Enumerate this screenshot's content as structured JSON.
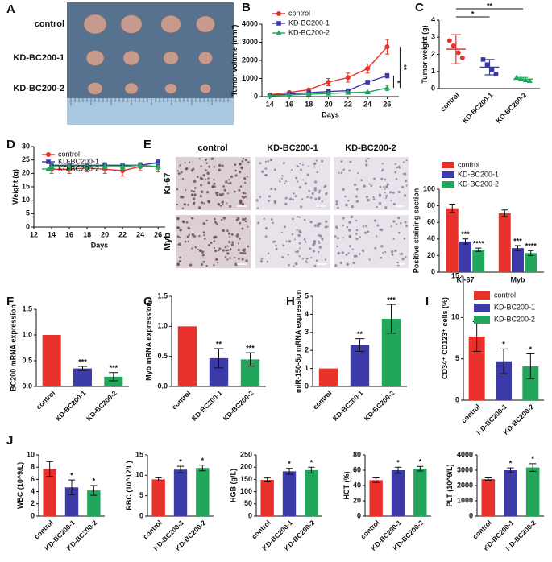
{
  "photo": {
    "panel": "A",
    "labels": [
      "control",
      "KD-BC200-1",
      "KD-BC200-2"
    ]
  },
  "ihc": {
    "panel": "E",
    "columns": [
      "control",
      "KD-BC200-1",
      "KD-BC200-2"
    ],
    "rows": [
      "Ki-67",
      "Myb"
    ]
  },
  "chart_data": [
    {
      "type": "line",
      "panel": "B",
      "xlabel": "Days",
      "ylabel": "Tumor volume (mm³)",
      "x": [
        14,
        16,
        18,
        20,
        22,
        24,
        26
      ],
      "xlim": [
        13.2,
        27.2
      ],
      "xticks": [
        14,
        16,
        18,
        20,
        22,
        24,
        26
      ],
      "ylim": [
        0,
        4000
      ],
      "yticks": [
        0,
        1000,
        2000,
        3000,
        4000
      ],
      "legend": "upper left",
      "significance": [
        "*",
        "**"
      ],
      "series": [
        {
          "name": "control",
          "color": "#e8312b",
          "marker": "circle",
          "values": [
            100,
            230,
            380,
            800,
            1050,
            1550,
            2750
          ],
          "errors": [
            20,
            40,
            60,
            200,
            250,
            250,
            400
          ]
        },
        {
          "name": "KD-BC200-1",
          "color": "#3c3aa8",
          "marker": "square",
          "values": [
            70,
            140,
            220,
            280,
            330,
            800,
            1150
          ],
          "errors": [
            10,
            20,
            30,
            40,
            50,
            100,
            120
          ]
        },
        {
          "name": "KD-BC200-2",
          "color": "#21a65b",
          "marker": "triangle",
          "values": [
            50,
            90,
            130,
            170,
            220,
            250,
            480
          ],
          "errors": [
            10,
            15,
            20,
            25,
            30,
            40,
            150
          ]
        }
      ]
    },
    {
      "type": "dot",
      "panel": "C",
      "ylabel": "Tumor weight (g)",
      "categories": [
        "control",
        "KD-BC200-1",
        "KD-BC200-2"
      ],
      "colors": [
        "#e8312b",
        "#3c3aa8",
        "#21a65b"
      ],
      "markers": [
        "circle",
        "square",
        "triangle"
      ],
      "points": [
        [
          2.8,
          2.5,
          2.1,
          1.8
        ],
        [
          1.7,
          1.4,
          1.1,
          0.85
        ],
        [
          0.65,
          0.55,
          0.5,
          0.45
        ]
      ],
      "means": [
        2.3,
        1.25,
        0.55
      ],
      "sds": [
        0.85,
        0.45,
        0.1
      ],
      "ylim": [
        0,
        4
      ],
      "yticks": [
        0,
        1,
        2,
        3,
        4
      ],
      "significance": [
        "*",
        "**"
      ]
    },
    {
      "type": "line",
      "panel": "D",
      "xlabel": "Days",
      "ylabel": "Weight (g)",
      "x": [
        14,
        16,
        18,
        20,
        22,
        24,
        26
      ],
      "xlim": [
        12,
        26.8
      ],
      "xticks": [
        12,
        14,
        16,
        18,
        20,
        22,
        24,
        26
      ],
      "ylim": [
        0,
        30
      ],
      "yticks": [
        0,
        5,
        10,
        15,
        20,
        25,
        30
      ],
      "legend": "upper left",
      "series": [
        {
          "name": "control",
          "color": "#e8312b",
          "marker": "circle",
          "values": [
            21.5,
            21.5,
            22,
            21.5,
            21,
            22.5,
            22.5
          ],
          "errors": [
            1.5,
            1.5,
            1.5,
            1.5,
            2,
            1.5,
            2
          ]
        },
        {
          "name": "KD-BC200-1",
          "color": "#3c3aa8",
          "marker": "square",
          "values": [
            23,
            23,
            23,
            23,
            23,
            23,
            24
          ],
          "errors": [
            0.5,
            0.5,
            0.5,
            0.5,
            0.5,
            0.8,
            1
          ]
        },
        {
          "name": "KD-BC200-2",
          "color": "#21a65b",
          "marker": "triangle",
          "values": [
            22.5,
            22.5,
            22.5,
            22.5,
            22.5,
            23,
            22.5
          ],
          "errors": [
            1,
            1,
            1,
            1.5,
            1,
            1,
            1
          ]
        }
      ]
    },
    {
      "type": "bar",
      "ylabel": "Positive staining section",
      "categories": [
        "Ki-67",
        "Myb"
      ],
      "ylim": [
        0,
        100
      ],
      "yticks": [
        0,
        20,
        40,
        60,
        80,
        100
      ],
      "legend": "upper left",
      "series": [
        {
          "name": "control",
          "color": "#e8312b",
          "values": [
            77,
            71
          ],
          "errors": [
            5,
            4
          ]
        },
        {
          "name": "KD-BC200-1",
          "color": "#3c3aa8",
          "values": [
            37,
            29
          ],
          "errors": [
            3,
            3
          ],
          "significance": [
            "***",
            "***"
          ]
        },
        {
          "name": "KD-BC200-2",
          "color": "#21a65b",
          "values": [
            27,
            23
          ],
          "errors": [
            2,
            3
          ],
          "significance": [
            "****",
            "****"
          ]
        }
      ]
    },
    {
      "type": "bar",
      "panel": "F",
      "ylabel": "BC200 mRNA expression",
      "categories": [
        "control",
        "KD-BC200-1",
        "KD-BC200-2"
      ],
      "colors": [
        "#e8312b",
        "#3c3aa8",
        "#21a65b"
      ],
      "values": [
        1.0,
        0.35,
        0.19
      ],
      "errors": [
        null,
        0.04,
        0.08
      ],
      "significance": [
        null,
        "***",
        "***"
      ],
      "ylim": [
        0,
        1.5
      ],
      "yticks": [
        {
          "value": 0,
          "label": "0.0"
        },
        0.5,
        {
          "value": 1,
          "label": "1.0"
        },
        1.5
      ]
    },
    {
      "type": "bar",
      "panel": "G",
      "ylabel": "Myb mRNA expression",
      "categories": [
        "control",
        "KD-BC200-1",
        "KD-BC200-2"
      ],
      "colors": [
        "#e8312b",
        "#3c3aa8",
        "#21a65b"
      ],
      "values": [
        1.0,
        0.47,
        0.45
      ],
      "errors": [
        null,
        0.16,
        0.11
      ],
      "significance": [
        null,
        "**",
        "***"
      ],
      "ylim": [
        0,
        1.5
      ],
      "yticks": [
        {
          "value": 0,
          "label": "0.0"
        },
        0.5,
        {
          "value": 1,
          "label": "1.0"
        },
        1.5
      ]
    },
    {
      "type": "bar",
      "panel": "H",
      "ylabel": "miR-150-5p mRNA expression",
      "categories": [
        "control",
        "KD-BC200-1",
        "KD-BC200-2"
      ],
      "colors": [
        "#e8312b",
        "#3c3aa8",
        "#21a65b"
      ],
      "values": [
        1.0,
        2.3,
        3.75
      ],
      "errors": [
        null,
        0.35,
        0.8
      ],
      "significance": [
        null,
        "**",
        "***"
      ],
      "ylim": [
        0,
        5
      ],
      "yticks": [
        0,
        1,
        2,
        3,
        4,
        5
      ]
    },
    {
      "type": "bar",
      "panel": "I",
      "ylabel": "CD34⁺ CD123⁺ cells (%)",
      "categories": [
        "control",
        "KD-BC200-1",
        "KD-BC200-2"
      ],
      "colors": [
        "#e8312b",
        "#3c3aa8",
        "#21a65b"
      ],
      "values": [
        7.7,
        4.7,
        4.1
      ],
      "errors": [
        1.8,
        1.5,
        1.5
      ],
      "significance": [
        null,
        "*",
        "*"
      ],
      "ylim": [
        0,
        15
      ],
      "yticks": [
        0,
        5,
        10,
        15
      ],
      "legend": "upper right"
    },
    {
      "type": "bar",
      "panel": "J",
      "ylabel": "WBC (10^9/L)",
      "categories": [
        "control",
        "KD-BC200-1",
        "KD-BC200-2"
      ],
      "colors": [
        "#e8312b",
        "#3c3aa8",
        "#21a65b"
      ],
      "values": [
        7.7,
        4.7,
        4.2
      ],
      "errors": [
        1.2,
        1.2,
        0.8
      ],
      "significance": [
        null,
        "*",
        "*"
      ],
      "ylim": [
        0,
        10
      ],
      "yticks": [
        0,
        2,
        4,
        6,
        8,
        10
      ]
    },
    {
      "type": "bar",
      "ylabel": "RBC (10^12/L)",
      "categories": [
        "control",
        "KD-BC200-1",
        "KD-BC200-2"
      ],
      "colors": [
        "#e8312b",
        "#3c3aa8",
        "#21a65b"
      ],
      "values": [
        9.0,
        11.4,
        11.8
      ],
      "errors": [
        0.4,
        0.8,
        0.7
      ],
      "significance": [
        null,
        "*",
        "*"
      ],
      "ylim": [
        0,
        15
      ],
      "yticks": [
        0,
        5,
        10,
        15
      ]
    },
    {
      "type": "bar",
      "ylabel": "HGB (g/L)",
      "categories": [
        "control",
        "KD-BC200-1",
        "KD-BC200-2"
      ],
      "colors": [
        "#e8312b",
        "#3c3aa8",
        "#21a65b"
      ],
      "values": [
        148,
        183,
        188
      ],
      "errors": [
        8,
        12,
        12
      ],
      "significance": [
        null,
        "*",
        "*"
      ],
      "ylim": [
        0,
        250
      ],
      "yticks": [
        0,
        50,
        100,
        150,
        200,
        250
      ]
    },
    {
      "type": "bar",
      "ylabel": "HCT (%)",
      "categories": [
        "control",
        "KD-BC200-1",
        "KD-BC200-2"
      ],
      "colors": [
        "#e8312b",
        "#3c3aa8",
        "#21a65b"
      ],
      "values": [
        47,
        60,
        62
      ],
      "errors": [
        3,
        4,
        3
      ],
      "significance": [
        null,
        "*",
        "*"
      ],
      "ylim": [
        0,
        80
      ],
      "yticks": [
        0,
        20,
        40,
        60,
        80
      ]
    },
    {
      "type": "bar",
      "ylabel": "PLT (10^9/L)",
      "categories": [
        "control",
        "KD-BC200-1",
        "KD-BC200-2"
      ],
      "colors": [
        "#e8312b",
        "#3c3aa8",
        "#21a65b"
      ],
      "values": [
        2420,
        3000,
        3180
      ],
      "errors": [
        80,
        150,
        250
      ],
      "significance": [
        null,
        "*",
        "*"
      ],
      "ylim": [
        0,
        4000
      ],
      "yticks": [
        0,
        1000,
        2000,
        3000,
        4000
      ]
    }
  ]
}
